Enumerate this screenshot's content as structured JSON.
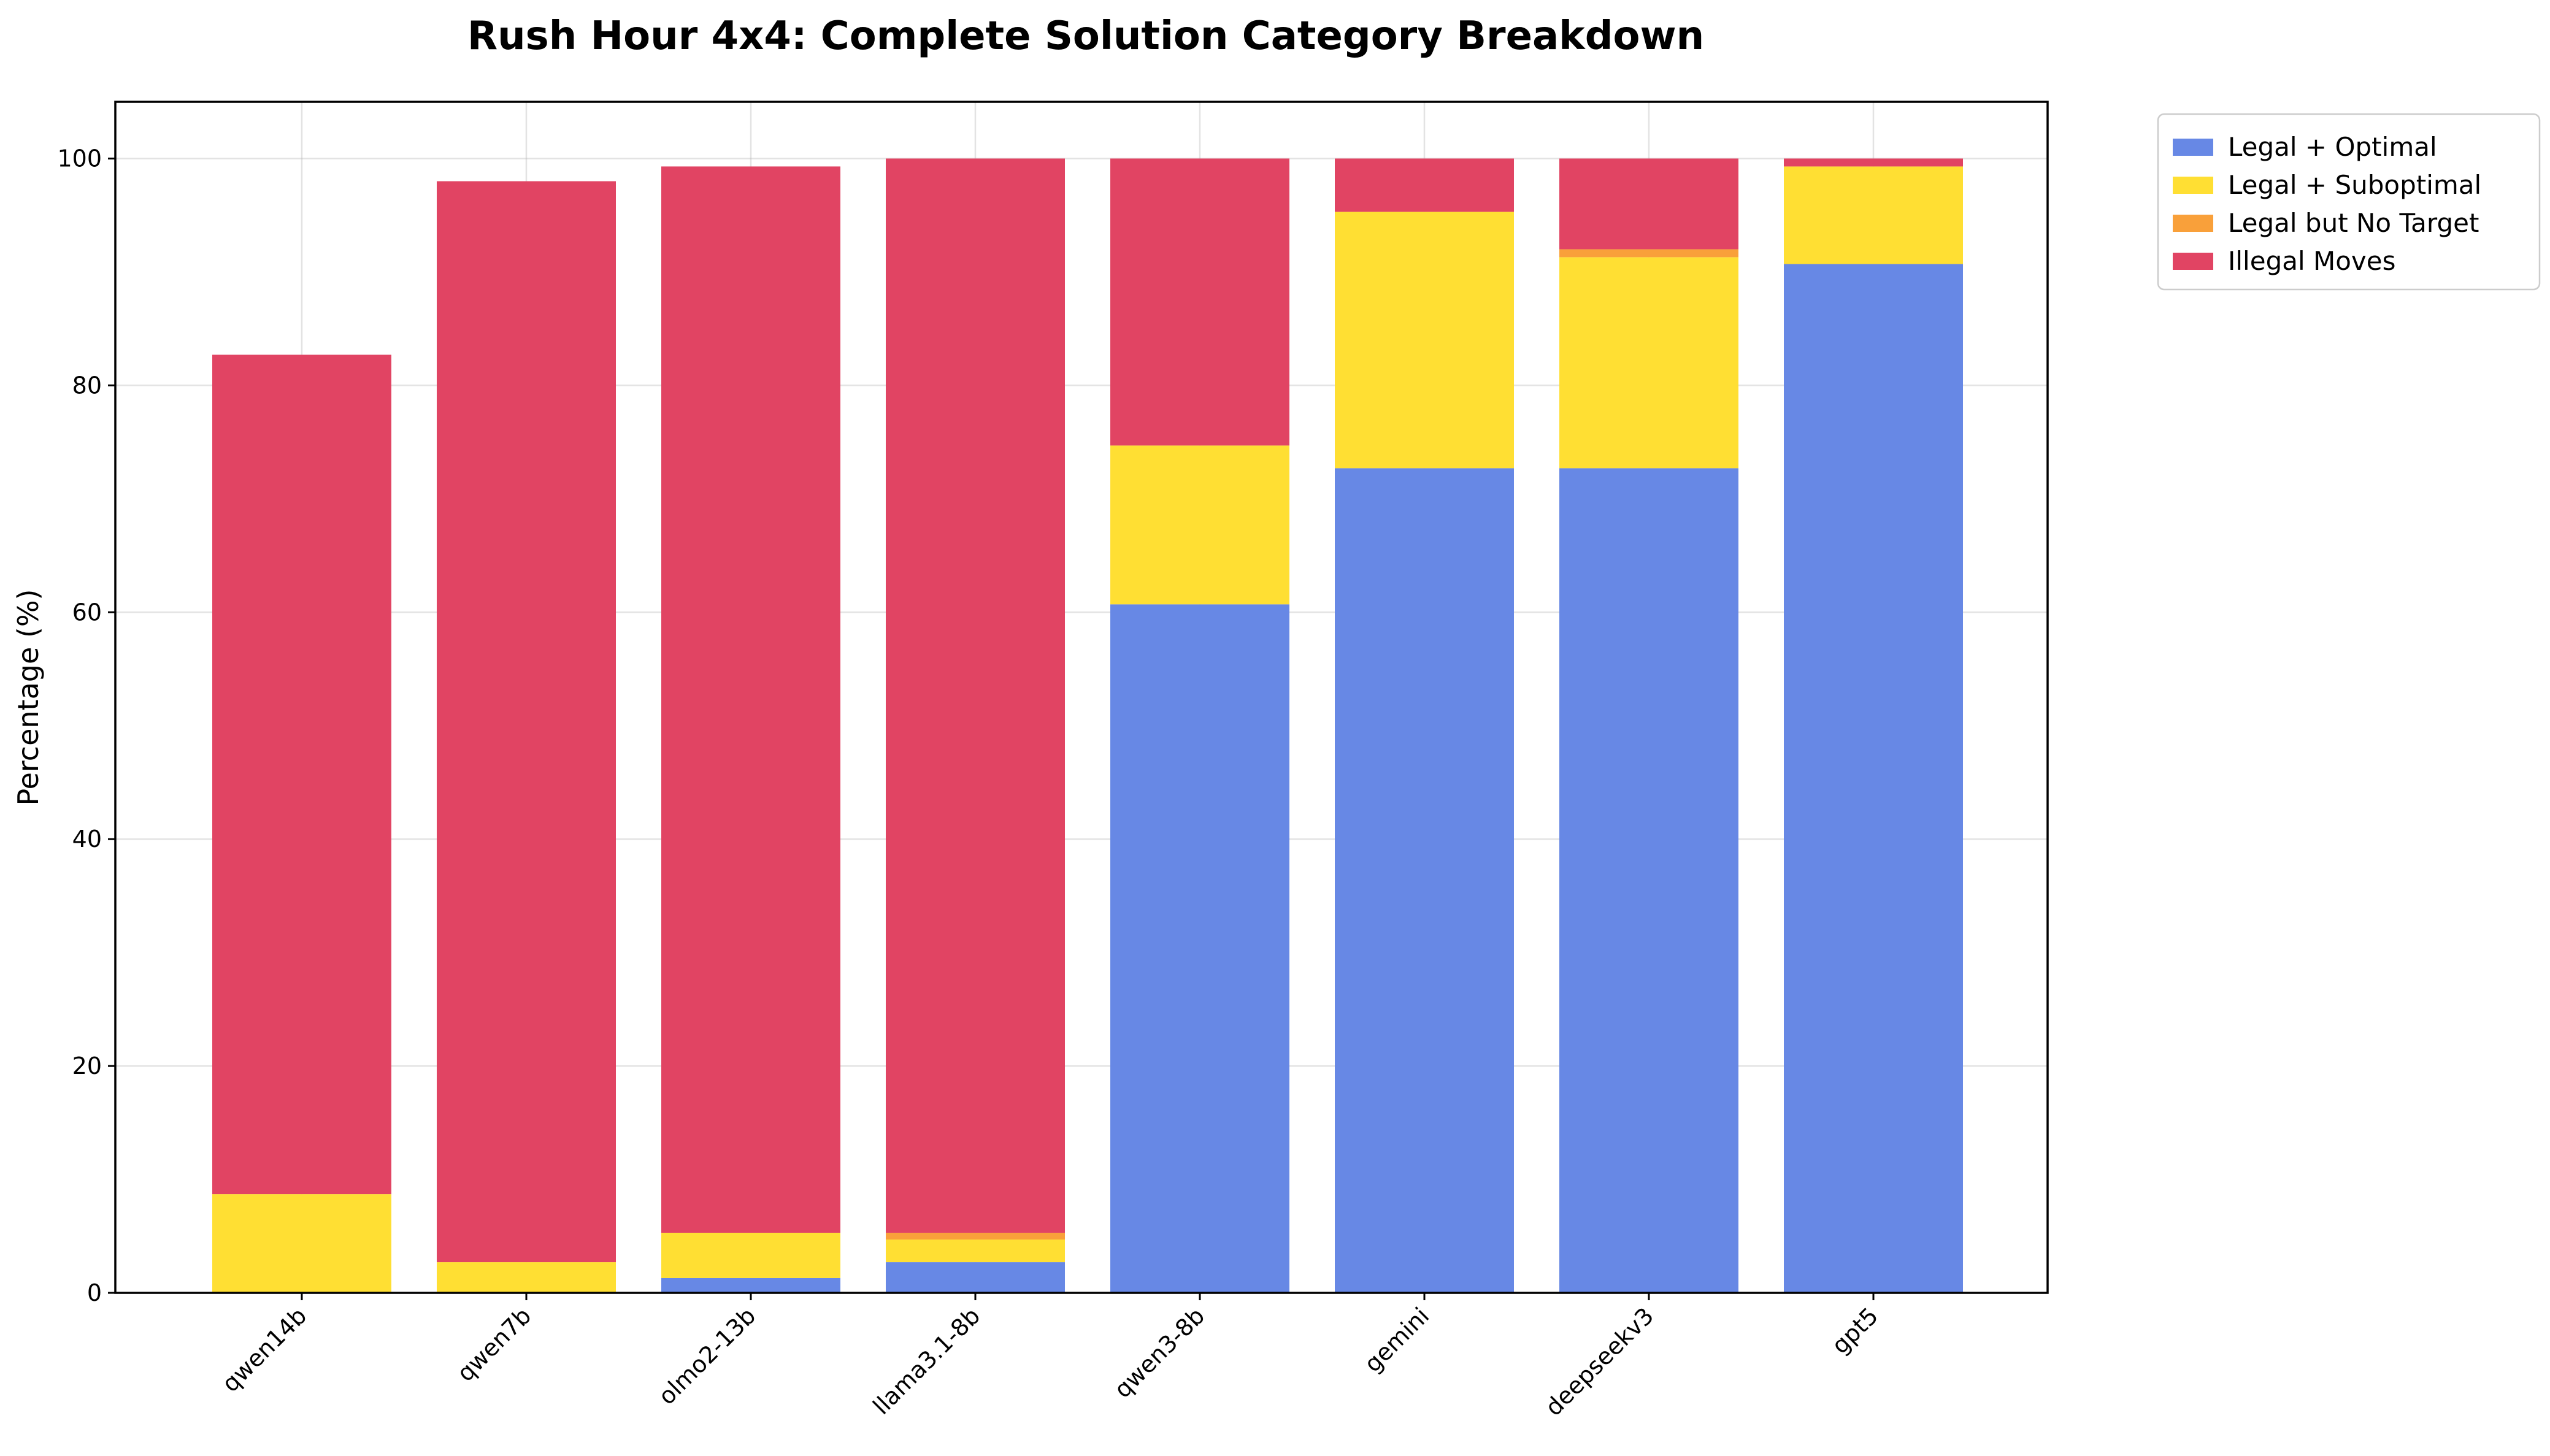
{
  "chart_data": {
    "type": "bar",
    "stacked": true,
    "title": "Rush Hour 4x4: Complete Solution Category Breakdown",
    "xlabel": "",
    "ylabel": "Percentage (%)",
    "ylim": [
      0,
      105
    ],
    "yticks": [
      0,
      20,
      40,
      60,
      80,
      100
    ],
    "grid": true,
    "legend_position": "outside-top-right",
    "categories": [
      "qwen14b",
      "qwen7b",
      "olmo2-13b",
      "llama3.1-8b",
      "qwen3-8b",
      "gemini",
      "deepseekv3",
      "gpt5"
    ],
    "series": [
      {
        "name": "Legal + Optimal",
        "color": "#6788e5",
        "values": [
          0,
          0,
          1.3,
          2.7,
          60.7,
          72.7,
          72.7,
          90.7
        ]
      },
      {
        "name": "Legal + Suboptimal",
        "color": "#ffdf33",
        "values": [
          8.7,
          2.7,
          4.0,
          2.0,
          14.0,
          22.6,
          18.6,
          8.6
        ]
      },
      {
        "name": "Legal but No Target",
        "color": "#f9a03a",
        "values": [
          0,
          0,
          0,
          0.6,
          0,
          0,
          0.7,
          0
        ]
      },
      {
        "name": "Illegal Moves",
        "color": "#e14463",
        "values": [
          74.0,
          95.3,
          94.0,
          94.7,
          25.3,
          4.7,
          8.0,
          0.7
        ]
      }
    ]
  }
}
